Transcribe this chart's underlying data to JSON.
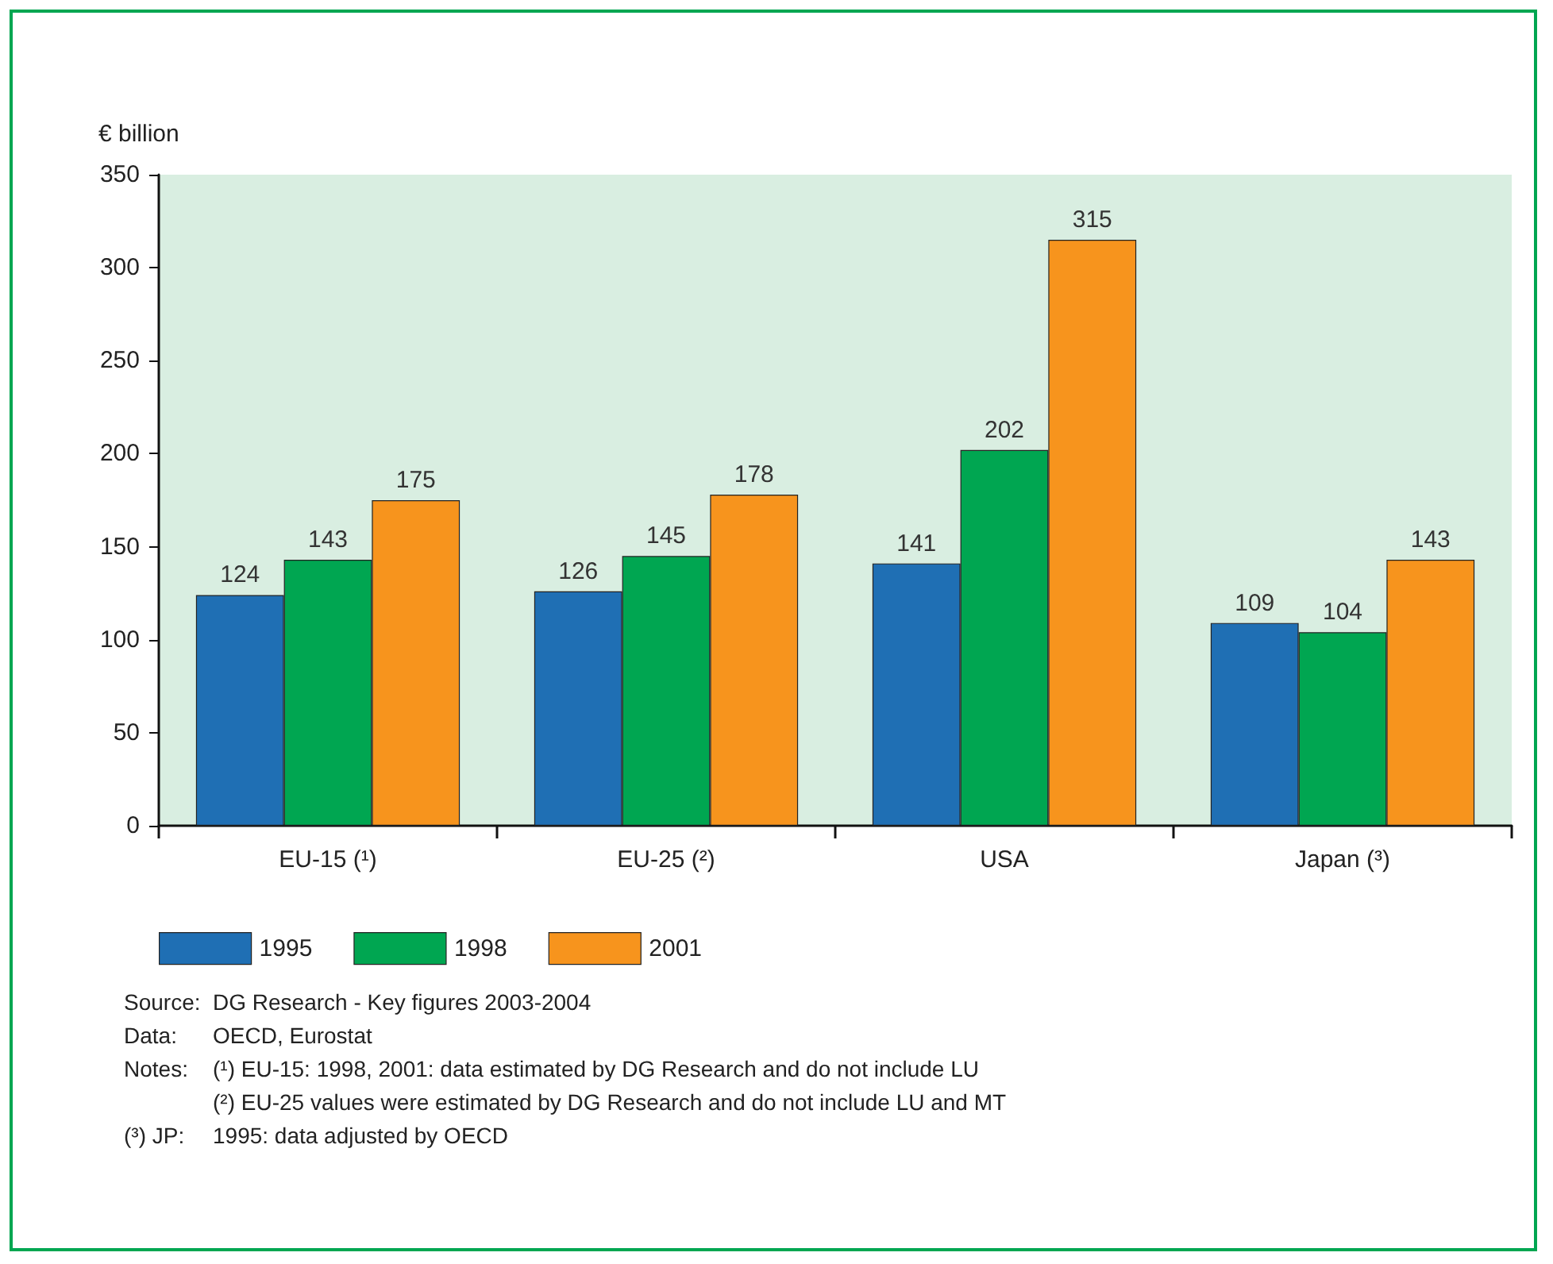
{
  "chart_data": {
    "type": "bar",
    "ylabel": "€ billion",
    "categories": [
      "EU-15 (¹)",
      "EU-25 (²)",
      "USA",
      "Japan (³)"
    ],
    "series": [
      {
        "name": "1995",
        "color": "#1f6fb4",
        "values": [
          124,
          126,
          141,
          109
        ]
      },
      {
        "name": "1998",
        "color": "#00a651",
        "values": [
          143,
          145,
          202,
          104
        ]
      },
      {
        "name": "2001",
        "color": "#f7941d",
        "values": [
          175,
          178,
          315,
          143
        ]
      }
    ],
    "ylim": [
      0,
      350
    ],
    "yticks": [
      0,
      50,
      100,
      150,
      200,
      250,
      300,
      350
    ],
    "grid": false,
    "legend": "bottom left",
    "data_labels": true,
    "annotations": [
      "Source: DG Research - Key figures 2003-2004",
      "Data: OECD, Eurostat",
      "Notes: (¹) EU-15: 1998, 2001: data estimated by DG Research and do not include LU",
      "(²) EU-25 values were estimated by DG Research and do not include LU and MT",
      "(³) JP: 1995: data adjusted by OECD"
    ]
  }
}
